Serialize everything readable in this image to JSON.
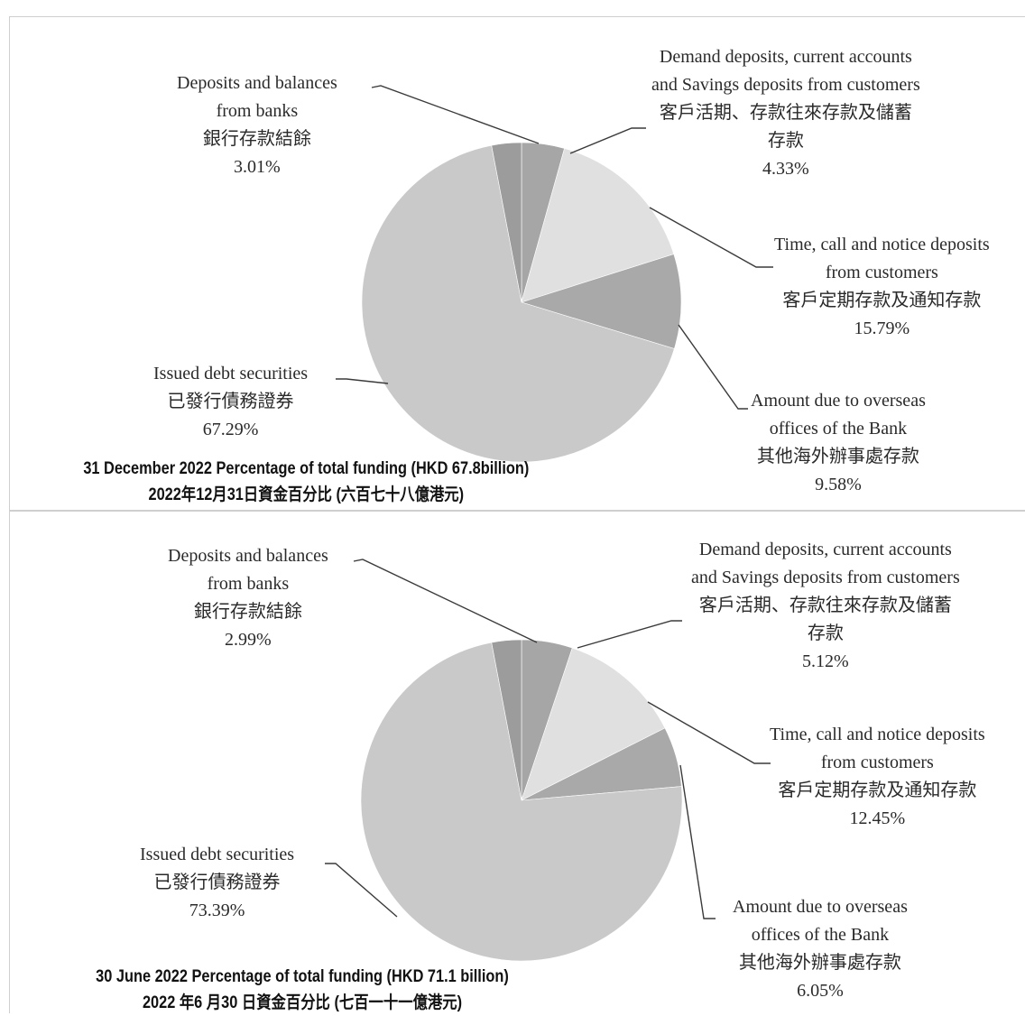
{
  "chart_data": [
    {
      "type": "pie",
      "title": "31 December 2022 Percentage of total funding (HKD 67.8billion)",
      "subtitle": "2022年12月31日資金百分比 (六百七十八億港元)",
      "colors": [
        "#a6a6a6",
        "#e0e0e0",
        "#a9a9a9",
        "#c9c9c9",
        "#9c9c9c"
      ],
      "slices": [
        {
          "label_en": "Demand deposits, current accounts and Savings deposits from customers",
          "label_zh": "客戶活期、存款往來存款及儲蓄存款",
          "value": 4.33,
          "pct": "4.33%"
        },
        {
          "label_en": "Time, call and notice deposits from customers",
          "label_zh": "客戶定期存款及通知存款",
          "value": 15.79,
          "pct": "15.79%"
        },
        {
          "label_en": "Amount due to overseas offices of the Bank",
          "label_zh": "其他海外辦事處存款",
          "value": 9.58,
          "pct": "9.58%"
        },
        {
          "label_en": "Issued debt securities",
          "label_zh": "已發行債務證券",
          "value": 67.29,
          "pct": "67.29%"
        },
        {
          "label_en": "Deposits and balances from banks",
          "label_zh": "銀行存款結餘",
          "value": 3.01,
          "pct": "3.01%"
        }
      ]
    },
    {
      "type": "pie",
      "title": "30 June 2022 Percentage of total funding (HKD 71.1 billion)",
      "subtitle": "2022 年6 月30 日資金百分比 (七百一十一億港元)",
      "colors": [
        "#a6a6a6",
        "#e0e0e0",
        "#a9a9a9",
        "#c9c9c9",
        "#9c9c9c"
      ],
      "slices": [
        {
          "label_en": "Demand deposits, current accounts and Savings deposits from customers",
          "label_zh": "客戶活期、存款往來存款及儲蓄存款",
          "value": 5.12,
          "pct": "5.12%"
        },
        {
          "label_en": "Time, call and notice deposits from customers",
          "label_zh": "客戶定期存款及通知存款",
          "value": 12.45,
          "pct": "12.45%"
        },
        {
          "label_en": "Amount due to overseas offices of the Bank",
          "label_zh": "其他海外辦事處存款",
          "value": 6.05,
          "pct": "6.05%"
        },
        {
          "label_en": "Issued debt securities",
          "label_zh": "已發行債務證券",
          "value": 73.39,
          "pct": "73.39%"
        },
        {
          "label_en": "Deposits and balances from banks",
          "label_zh": "銀行存款結餘",
          "value": 2.99,
          "pct": "2.99%"
        }
      ]
    }
  ],
  "labels": {
    "c0_banks": [
      "Deposits and balances",
      "from banks",
      "銀行存款結餘",
      "3.01%"
    ],
    "c0_demand": [
      "Demand deposits, current accounts",
      "and Savings deposits from customers",
      "客戶活期、存款往來存款及儲蓄",
      "存款",
      "4.33%"
    ],
    "c0_time": [
      "Time, call and notice deposits",
      "from customers",
      "客戶定期存款及通知存款",
      "15.79%"
    ],
    "c0_overseas": [
      "Amount due to overseas",
      "offices of the Bank",
      "其他海外辦事處存款",
      "9.58%"
    ],
    "c0_debt": [
      "Issued debt securities",
      "已發行債務證券",
      "67.29%"
    ],
    "c1_banks": [
      "Deposits and balances",
      "from banks",
      "銀行存款結餘",
      "2.99%"
    ],
    "c1_demand": [
      "Demand deposits, current accounts",
      "and Savings deposits from customers",
      "客戶活期、存款往來存款及儲蓄",
      "存款",
      "5.12%"
    ],
    "c1_time": [
      "Time, call and notice deposits",
      "from customers",
      "客戶定期存款及通知存款",
      "12.45%"
    ],
    "c1_overseas": [
      "Amount due to overseas",
      "offices of the Bank",
      "其他海外辦事處存款",
      "6.05%"
    ],
    "c1_debt": [
      "Issued debt securities",
      "已發行債務證券",
      "73.39%"
    ]
  }
}
